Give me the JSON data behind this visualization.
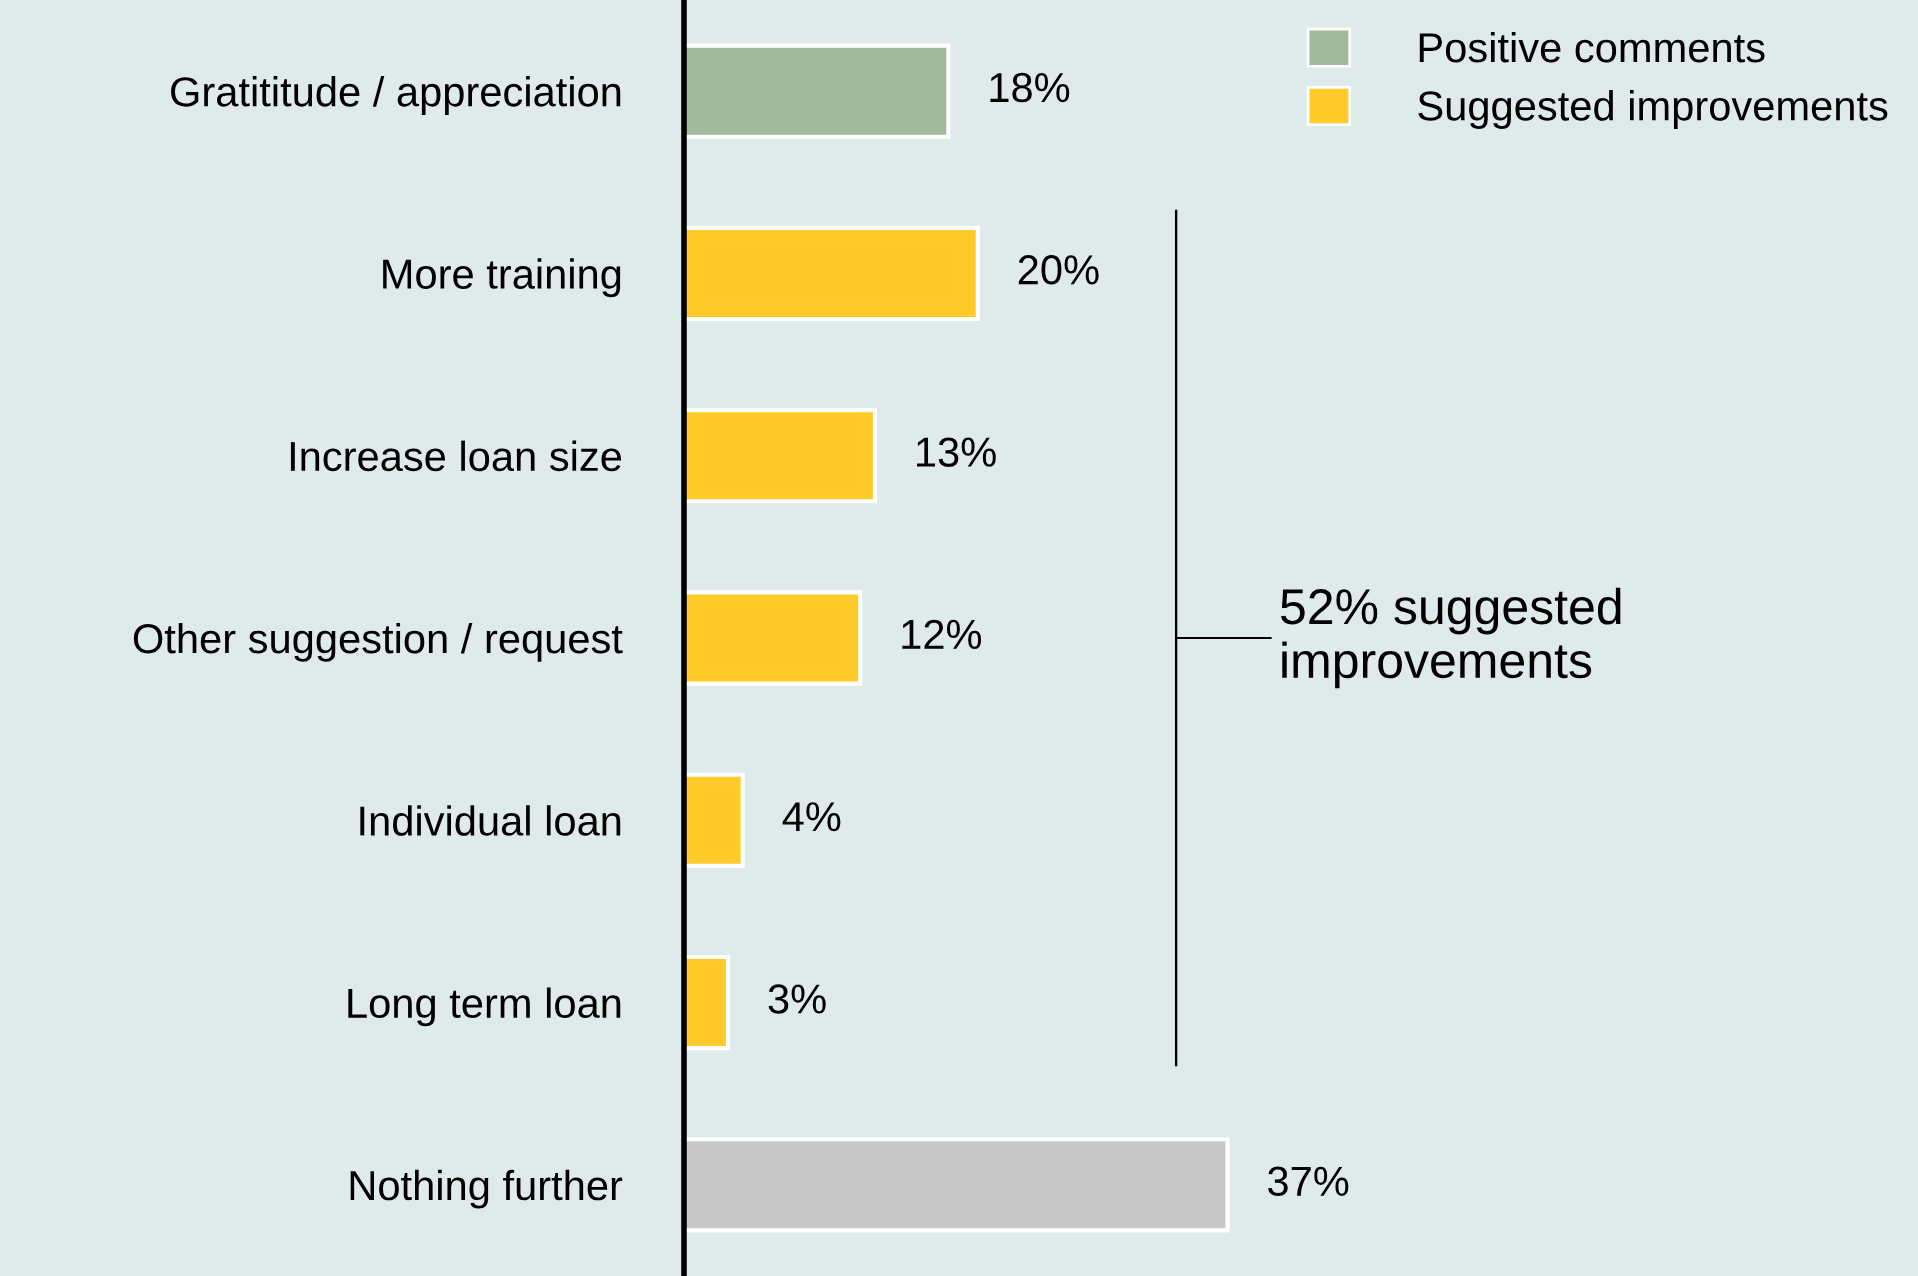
{
  "chart_data": {
    "type": "bar",
    "orientation": "horizontal",
    "xlim": [
      0,
      84
    ],
    "tick_labels": "y",
    "grid": false,
    "legend": "top right",
    "categories": [
      "Gratititude / appreciation",
      "More training",
      "Increase loan size",
      "Other suggestion / request",
      "Individual loan",
      "Long term loan",
      "Nothing further"
    ],
    "series": [
      {
        "name": "Positive comments",
        "color": "#a3b99c",
        "values": [
          18,
          null,
          null,
          null,
          null,
          null,
          null
        ],
        "value_labels": [
          "18%",
          null,
          null,
          null,
          null,
          null,
          null
        ]
      },
      {
        "name": "Suggested improvements",
        "color": "#ffcb2b",
        "values": [
          null,
          20,
          13,
          12,
          4,
          3,
          null
        ],
        "value_labels": [
          null,
          "20%",
          "13%",
          "12%",
          "4%",
          "3%",
          null
        ]
      },
      {
        "color": "#c8c8c8",
        "values": [
          null,
          null,
          null,
          null,
          null,
          null,
          37
        ],
        "value_labels": [
          null,
          null,
          null,
          null,
          null,
          null,
          "37%"
        ]
      }
    ],
    "annotations": [
      "52% suggested improvements"
    ]
  }
}
